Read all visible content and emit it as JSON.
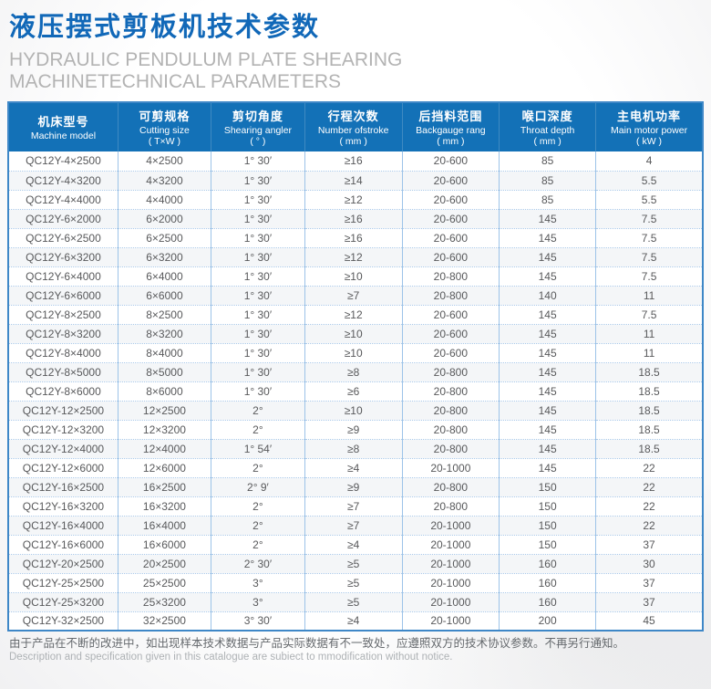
{
  "header": {
    "title": "液压摆式剪板机技术参数",
    "subtitle": "HYDRAULIC PENDULUM PLATE SHEARING MACHINETECHNICAL PARAMETERS"
  },
  "table": {
    "columns": [
      {
        "cn": "机床型号",
        "en": "Machine model",
        "unit": ""
      },
      {
        "cn": "可剪规格",
        "en": "Cutting size",
        "unit": "( T×W )"
      },
      {
        "cn": "剪切角度",
        "en": "Shearing angler",
        "unit": "( ° )"
      },
      {
        "cn": "行程次数",
        "en": "Number ofstroke",
        "unit": "( mm )"
      },
      {
        "cn": "后挡料范围",
        "en": "Backgauge rang",
        "unit": "( mm )"
      },
      {
        "cn": "喉口深度",
        "en": "Throat depth",
        "unit": "( mm )"
      },
      {
        "cn": "主电机功率",
        "en": "Main motor power",
        "unit": "( kW )"
      }
    ],
    "rows": [
      [
        "QC12Y-4×2500",
        "4×2500",
        "1° 30′",
        "≥16",
        "20-600",
        "85",
        "4"
      ],
      [
        "QC12Y-4×3200",
        "4×3200",
        "1° 30′",
        "≥14",
        "20-600",
        "85",
        "5.5"
      ],
      [
        "QC12Y-4×4000",
        "4×4000",
        "1° 30′",
        "≥12",
        "20-600",
        "85",
        "5.5"
      ],
      [
        "QC12Y-6×2000",
        "6×2000",
        "1° 30′",
        "≥16",
        "20-600",
        "145",
        "7.5"
      ],
      [
        "QC12Y-6×2500",
        "6×2500",
        "1° 30′",
        "≥16",
        "20-600",
        "145",
        "7.5"
      ],
      [
        "QC12Y-6×3200",
        "6×3200",
        "1° 30′",
        "≥12",
        "20-600",
        "145",
        "7.5"
      ],
      [
        "QC12Y-6×4000",
        "6×4000",
        "1° 30′",
        "≥10",
        "20-800",
        "145",
        "7.5"
      ],
      [
        "QC12Y-6×6000",
        "6×6000",
        "1° 30′",
        "≥7",
        "20-800",
        "140",
        "11"
      ],
      [
        "QC12Y-8×2500",
        "8×2500",
        "1° 30′",
        "≥12",
        "20-600",
        "145",
        "7.5"
      ],
      [
        "QC12Y-8×3200",
        "8×3200",
        "1° 30′",
        "≥10",
        "20-600",
        "145",
        "11"
      ],
      [
        "QC12Y-8×4000",
        "8×4000",
        "1° 30′",
        "≥10",
        "20-600",
        "145",
        "11"
      ],
      [
        "QC12Y-8×5000",
        "8×5000",
        "1° 30′",
        "≥8",
        "20-800",
        "145",
        "18.5"
      ],
      [
        "QC12Y-8×6000",
        "8×6000",
        "1° 30′",
        "≥6",
        "20-800",
        "145",
        "18.5"
      ],
      [
        "QC12Y-12×2500",
        "12×2500",
        "2°",
        "≥10",
        "20-800",
        "145",
        "18.5"
      ],
      [
        "QC12Y-12×3200",
        "12×3200",
        "2°",
        "≥9",
        "20-800",
        "145",
        "18.5"
      ],
      [
        "QC12Y-12×4000",
        "12×4000",
        "1° 54′",
        "≥8",
        "20-800",
        "145",
        "18.5"
      ],
      [
        "QC12Y-12×6000",
        "12×6000",
        "2°",
        "≥4",
        "20-1000",
        "145",
        "22"
      ],
      [
        "QC12Y-16×2500",
        "16×2500",
        "2° 9′",
        "≥9",
        "20-800",
        "150",
        "22"
      ],
      [
        "QC12Y-16×3200",
        "16×3200",
        "2°",
        "≥7",
        "20-800",
        "150",
        "22"
      ],
      [
        "QC12Y-16×4000",
        "16×4000",
        "2°",
        "≥7",
        "20-1000",
        "150",
        "22"
      ],
      [
        "QC12Y-16×6000",
        "16×6000",
        "2°",
        "≥4",
        "20-1000",
        "150",
        "37"
      ],
      [
        "QC12Y-20×2500",
        "20×2500",
        "2° 30′",
        "≥5",
        "20-1000",
        "160",
        "30"
      ],
      [
        "QC12Y-25×2500",
        "25×2500",
        "3°",
        "≥5",
        "20-1000",
        "160",
        "37"
      ],
      [
        "QC12Y-25×3200",
        "25×3200",
        "3°",
        "≥5",
        "20-1000",
        "160",
        "37"
      ],
      [
        "QC12Y-32×2500",
        "32×2500",
        "3° 30′",
        "≥4",
        "20-1000",
        "200",
        "45"
      ]
    ]
  },
  "footer": {
    "note_cn": "由于产品在不断的改进中，如出现样本技术数据与产品实际数据有不一致处，应遵照双方的技术协议参数。不再另行通知。",
    "note_en": "Description and specification given in this catalogue are subiect to mmodification without notice."
  },
  "colors": {
    "title_blue": "#1168b8",
    "header_bg": "#1371b7",
    "border_blue": "#3e87c7",
    "grid_blue": "#9cc3e8",
    "subtitle_gray": "#b3b3b3"
  }
}
